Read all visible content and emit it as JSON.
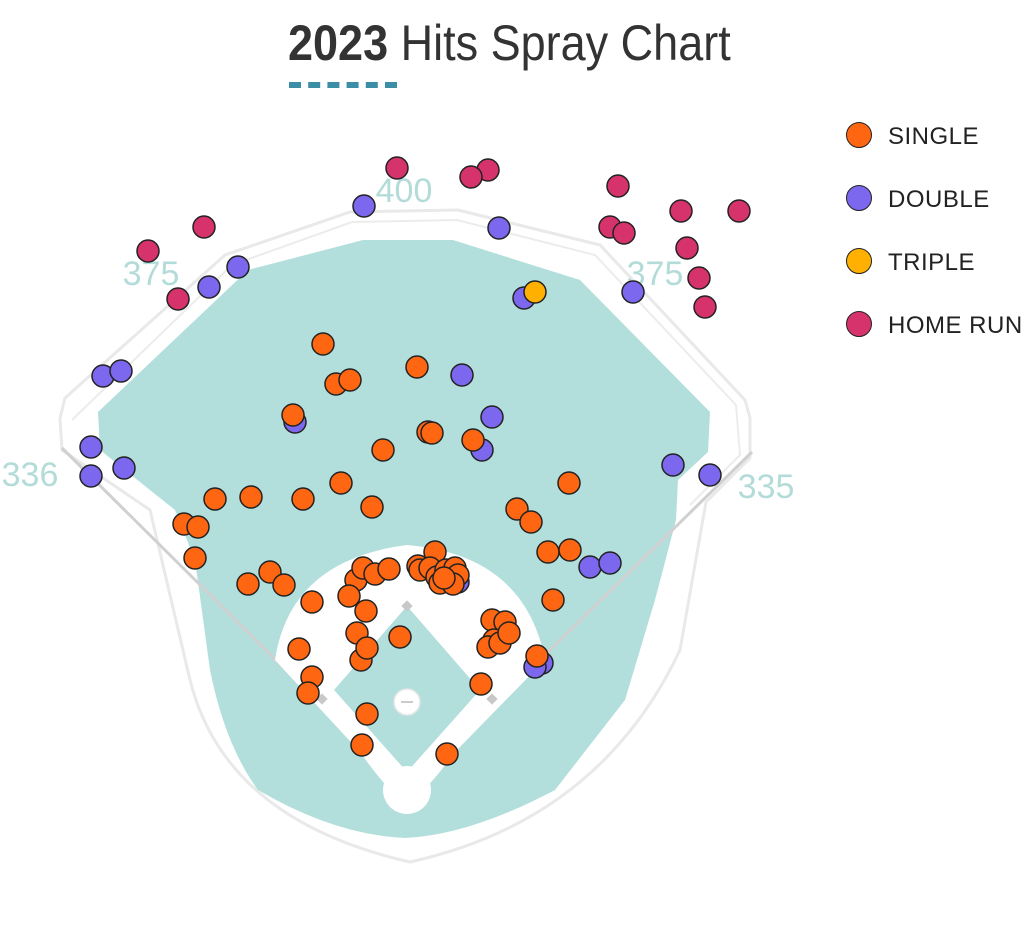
{
  "title": {
    "year": "2023",
    "rest": "Hits Spray Chart"
  },
  "colors": {
    "single": "#ff6611",
    "double": "#7b68ee",
    "triple": "#ffb000",
    "home_run": "#d6336c",
    "grass": "#b2dfdc",
    "accent": "#3b8ea5"
  },
  "chart_data": {
    "type": "scatter",
    "title": "2023 Hits Spray Chart",
    "xlabel": "",
    "ylabel": "",
    "legend_position": "top-right",
    "grid": false,
    "fence_distances": [
      {
        "label": "336",
        "position": "left field line"
      },
      {
        "label": "375",
        "position": "left-center field"
      },
      {
        "label": "400",
        "position": "center field"
      },
      {
        "label": "375",
        "position": "right-center field"
      },
      {
        "label": "335",
        "position": "right field line"
      }
    ],
    "legend": [
      "SINGLE",
      "DOUBLE",
      "TRIPLE",
      "HOME RUN"
    ],
    "series": [
      {
        "name": "SINGLE",
        "key": "single",
        "points": [
          [
            323,
            344
          ],
          [
            417,
            367
          ],
          [
            336,
            384
          ],
          [
            350,
            380
          ],
          [
            293,
            415
          ],
          [
            383,
            450
          ],
          [
            428,
            432
          ],
          [
            432,
            433
          ],
          [
            473,
            440
          ],
          [
            569,
            483
          ],
          [
            215,
            499
          ],
          [
            251,
            497
          ],
          [
            303,
            499
          ],
          [
            341,
            483
          ],
          [
            372,
            507
          ],
          [
            184,
            524
          ],
          [
            198,
            527
          ],
          [
            195,
            558
          ],
          [
            517,
            509
          ],
          [
            531,
            522
          ],
          [
            548,
            552
          ],
          [
            570,
            550
          ],
          [
            553,
            600
          ],
          [
            248,
            584
          ],
          [
            270,
            572
          ],
          [
            284,
            585
          ],
          [
            312,
            602
          ],
          [
            356,
            580
          ],
          [
            363,
            568
          ],
          [
            375,
            574
          ],
          [
            389,
            569
          ],
          [
            349,
            596
          ],
          [
            366,
            611
          ],
          [
            357,
            633
          ],
          [
            361,
            660
          ],
          [
            367,
            648
          ],
          [
            400,
            637
          ],
          [
            299,
            649
          ],
          [
            312,
            677
          ],
          [
            308,
            693
          ],
          [
            435,
            552
          ],
          [
            418,
            566
          ],
          [
            420,
            570
          ],
          [
            430,
            568
          ],
          [
            437,
            577
          ],
          [
            440,
            583
          ],
          [
            446,
            570
          ],
          [
            455,
            568
          ],
          [
            458,
            575
          ],
          [
            453,
            584
          ],
          [
            444,
            578
          ],
          [
            492,
            620
          ],
          [
            505,
            622
          ],
          [
            494,
            640
          ],
          [
            488,
            647
          ],
          [
            500,
            643
          ],
          [
            509,
            633
          ],
          [
            537,
            656
          ],
          [
            481,
            684
          ],
          [
            367,
            714
          ],
          [
            362,
            745
          ],
          [
            447,
            754
          ]
        ]
      },
      {
        "name": "DOUBLE",
        "key": "double",
        "points": [
          [
            364,
            206
          ],
          [
            499,
            228
          ],
          [
            238,
            267
          ],
          [
            209,
            287
          ],
          [
            524,
            298
          ],
          [
            633,
            292
          ],
          [
            103,
            376
          ],
          [
            121,
            371
          ],
          [
            462,
            375
          ],
          [
            492,
            417
          ],
          [
            295,
            422
          ],
          [
            482,
            450
          ],
          [
            91,
            447
          ],
          [
            91,
            476
          ],
          [
            124,
            468
          ],
          [
            673,
            465
          ],
          [
            710,
            475
          ],
          [
            590,
            567
          ],
          [
            610,
            563
          ],
          [
            458,
            582
          ],
          [
            537,
            664
          ],
          [
            542,
            663
          ],
          [
            535,
            667
          ]
        ]
      },
      {
        "name": "TRIPLE",
        "key": "triple",
        "points": [
          [
            535,
            292
          ]
        ]
      },
      {
        "name": "HOME RUN",
        "key": "home_run",
        "points": [
          [
            397,
            168
          ],
          [
            488,
            170
          ],
          [
            471,
            177
          ],
          [
            618,
            186
          ],
          [
            681,
            211
          ],
          [
            739,
            211
          ],
          [
            204,
            227
          ],
          [
            610,
            227
          ],
          [
            624,
            233
          ],
          [
            148,
            251
          ],
          [
            687,
            248
          ],
          [
            699,
            278
          ],
          [
            178,
            299
          ],
          [
            705,
            307
          ]
        ]
      }
    ]
  }
}
